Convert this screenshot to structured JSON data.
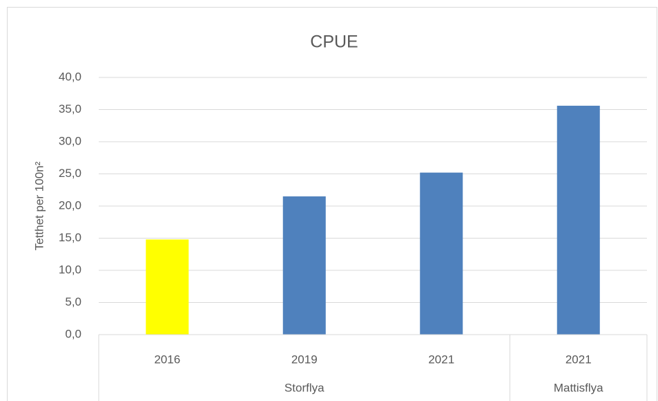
{
  "chart_data": {
    "type": "bar",
    "title": "CPUE",
    "y_label": "Tetthet per 100n²",
    "categories": [
      "2016",
      "2019",
      "2021",
      "2021"
    ],
    "groups": [
      {
        "name": "Storflya",
        "size": 3
      },
      {
        "name": "Mattisflya",
        "size": 1
      }
    ],
    "values": [
      14.8,
      21.5,
      25.2,
      35.6
    ],
    "colors": [
      "#ffff00",
      "#4f81bd",
      "#4f81bd",
      "#4f81bd"
    ],
    "ylim": [
      0,
      40
    ],
    "yticks": [
      {
        "value": 0,
        "label": "0,0"
      },
      {
        "value": 5,
        "label": "5,0"
      },
      {
        "value": 10,
        "label": "10,0"
      },
      {
        "value": 15,
        "label": "15,0"
      },
      {
        "value": 20,
        "label": "20,0"
      },
      {
        "value": 25,
        "label": "25,0"
      },
      {
        "value": 30,
        "label": "30,0"
      },
      {
        "value": 35,
        "label": "35,0"
      },
      {
        "value": 40,
        "label": "40,0"
      }
    ],
    "grid": true
  }
}
